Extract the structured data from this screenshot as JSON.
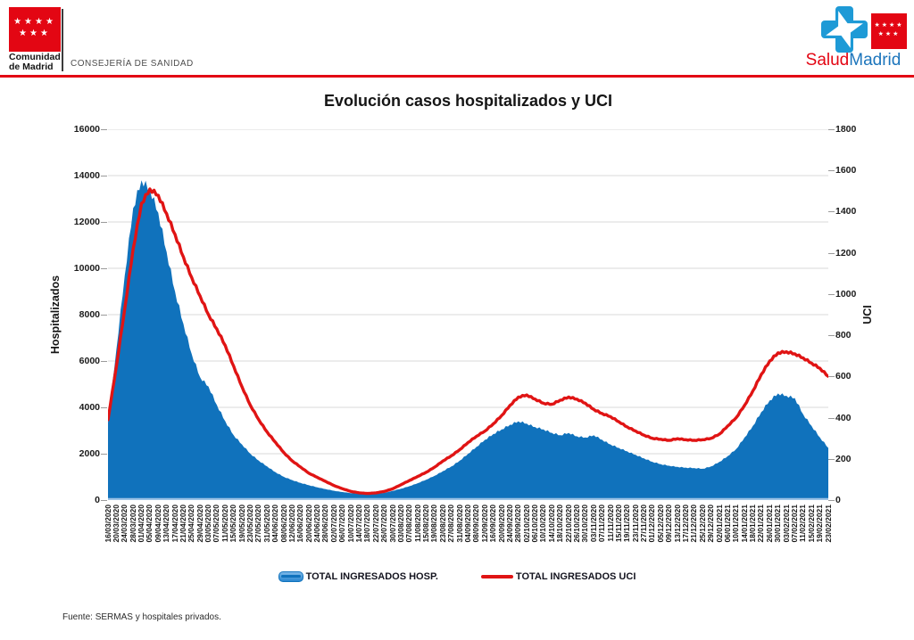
{
  "header": {
    "cm_line1": "Comunidad",
    "cm_line2": "de Madrid",
    "department": "CONSEJERÍA DE SANIDAD",
    "salud": "Salud",
    "madrid": "Madrid",
    "flag_stars_row1": "★★★★",
    "flag_stars_row2": "★★★"
  },
  "colors": {
    "brand_red": "#E30613",
    "cross_blue": "#1E9AD6",
    "madrid_blue": "#1C75BC",
    "grid": "#D9D9D9",
    "x_axis_line": "#9CC2E5"
  },
  "chart_data": {
    "type": "area",
    "title": "Evolución casos hospitalizados y UCI",
    "grid": true,
    "legend_position": "bottom",
    "left_axis": {
      "label": "Hospitalizados",
      "min": 0,
      "max": 16000,
      "step": 2000,
      "ticks": [
        "16000",
        "14000",
        "12000",
        "10000",
        "8000",
        "6000",
        "4000",
        "2000",
        "0"
      ]
    },
    "right_axis": {
      "label": "UCI",
      "min": 0,
      "max": 1800,
      "step": 200,
      "ticks": [
        "1800",
        "1600",
        "1400",
        "1200",
        "1000",
        "800",
        "600",
        "400",
        "200",
        "0"
      ]
    },
    "categories": [
      "16/03/2020",
      "20/03/2020",
      "24/03/2020",
      "28/03/2020",
      "01/04/2020",
      "05/04/2020",
      "09/04/2020",
      "13/04/2020",
      "17/04/2020",
      "21/04/2020",
      "25/04/2020",
      "29/04/2020",
      "03/05/2020",
      "07/05/2020",
      "11/05/2020",
      "15/05/2020",
      "19/05/2020",
      "23/05/2020",
      "27/05/2020",
      "31/05/2020",
      "04/06/2020",
      "08/06/2020",
      "12/06/2020",
      "16/06/2020",
      "20/06/2020",
      "24/06/2020",
      "28/06/2020",
      "02/07/2020",
      "06/07/2020",
      "10/07/2020",
      "14/07/2020",
      "18/07/2020",
      "22/07/2020",
      "26/07/2020",
      "30/07/2020",
      "03/08/2020",
      "07/08/2020",
      "11/08/2020",
      "15/08/2020",
      "19/08/2020",
      "23/08/2020",
      "27/08/2020",
      "31/08/2020",
      "04/09/2020",
      "08/09/2020",
      "12/09/2020",
      "16/09/2020",
      "20/09/2020",
      "24/09/2020",
      "28/09/2020",
      "02/10/2020",
      "06/10/2020",
      "10/10/2020",
      "14/10/2020",
      "18/10/2020",
      "22/10/2020",
      "26/10/2020",
      "30/10/2020",
      "03/11/2020",
      "07/11/2020",
      "11/11/2020",
      "15/11/2020",
      "19/11/2020",
      "23/11/2020",
      "27/11/2020",
      "01/12/2020",
      "05/12/2020",
      "09/12/2020",
      "13/12/2020",
      "17/12/2020",
      "21/12/2020",
      "25/12/2020",
      "29/12/2020",
      "02/01/2021",
      "06/01/2021",
      "10/01/2021",
      "14/01/2021",
      "18/01/2021",
      "22/01/2021",
      "26/01/2021",
      "30/01/2021",
      "03/02/2021",
      "07/02/2021",
      "11/02/2021",
      "15/02/2021",
      "19/02/2021",
      "23/02/2021"
    ],
    "series": [
      {
        "name": "TOTAL INGRESADOS HOSP.",
        "type": "area",
        "axis": "left",
        "color": "#1072BC",
        "values": [
          3350,
          6500,
          9700,
          12600,
          13800,
          13400,
          12400,
          10700,
          9000,
          7600,
          6300,
          5300,
          4900,
          4100,
          3400,
          2800,
          2400,
          2000,
          1700,
          1450,
          1200,
          1000,
          860,
          740,
          640,
          550,
          470,
          400,
          345,
          300,
          270,
          255,
          270,
          310,
          400,
          490,
          600,
          730,
          880,
          1050,
          1250,
          1450,
          1700,
          2000,
          2300,
          2600,
          2850,
          3050,
          3250,
          3400,
          3300,
          3150,
          3050,
          2900,
          2800,
          2900,
          2750,
          2700,
          2800,
          2600,
          2400,
          2250,
          2100,
          1950,
          1800,
          1650,
          1550,
          1480,
          1430,
          1400,
          1380,
          1350,
          1450,
          1650,
          1900,
          2200,
          2700,
          3200,
          3800,
          4300,
          4600,
          4500,
          4400,
          3700,
          3200,
          2700,
          2250
        ]
      },
      {
        "name": "TOTAL INGRESADOS UCI",
        "type": "line",
        "axis": "right",
        "color": "#E01414",
        "values": [
          390,
          650,
          930,
          1220,
          1440,
          1510,
          1480,
          1390,
          1290,
          1180,
          1080,
          990,
          900,
          830,
          750,
          650,
          550,
          460,
          390,
          330,
          280,
          230,
          190,
          160,
          130,
          110,
          90,
          70,
          55,
          42,
          35,
          32,
          35,
          42,
          55,
          75,
          95,
          115,
          135,
          160,
          190,
          215,
          245,
          280,
          310,
          335,
          370,
          410,
          460,
          500,
          510,
          490,
          470,
          465,
          485,
          500,
          490,
          470,
          440,
          420,
          405,
          380,
          355,
          335,
          315,
          300,
          295,
          290,
          298,
          293,
          290,
          293,
          300,
          320,
          360,
          400,
          460,
          530,
          610,
          675,
          715,
          720,
          710,
          690,
          665,
          640,
          600
        ]
      }
    ]
  },
  "footer": {
    "source": "Fuente: SERMAS y hospitales privados."
  }
}
